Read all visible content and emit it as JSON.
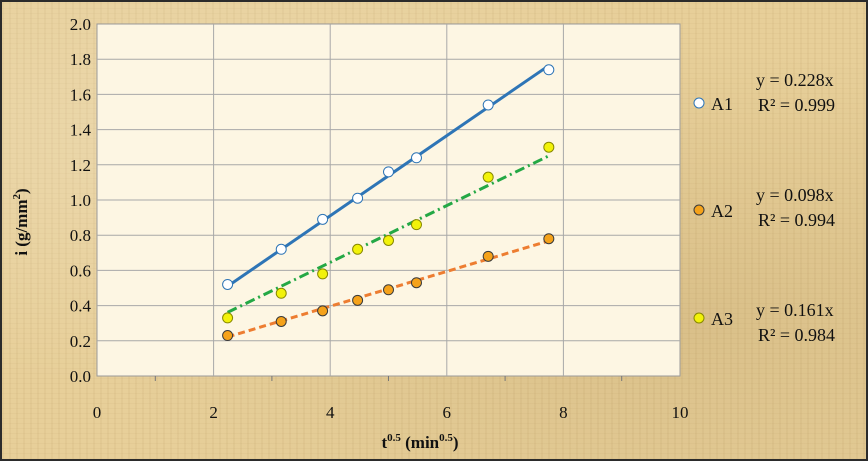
{
  "chart_data": {
    "type": "scatter",
    "xlabel": "t",
    "xlabel_sup": "0.5",
    "xlabel_unit": " (min",
    "xlabel_unit_sup": "0.5",
    "xlabel_close": ")",
    "ylabel": "i (g/mm",
    "ylabel_sup": "2",
    "ylabel_close": ")",
    "xlim": [
      0,
      10
    ],
    "ylim": [
      0,
      2
    ],
    "x_ticks": [
      "0",
      "2",
      "4",
      "6",
      "8",
      "10"
    ],
    "y_ticks": [
      "0.0",
      "0.2",
      "0.4",
      "0.6",
      "0.8",
      "1.0",
      "1.2",
      "1.4",
      "1.6",
      "1.8",
      "2.0"
    ],
    "grid": true,
    "legend_position": "right",
    "series": [
      {
        "name": "A1",
        "color": "#2e75b6",
        "marker_fill": "#ffffff",
        "marker_stroke": "#2e75b6",
        "line_style": "solid",
        "points": [
          [
            2.24,
            0.52
          ],
          [
            3.16,
            0.72
          ],
          [
            3.87,
            0.89
          ],
          [
            4.47,
            1.01
          ],
          [
            5.0,
            1.16
          ],
          [
            5.48,
            1.24
          ],
          [
            6.71,
            1.54
          ],
          [
            7.75,
            1.74
          ]
        ],
        "trendline_x": [
          2.24,
          7.75
        ],
        "equation": "y = 0.228x",
        "r2": "R² = 0.999"
      },
      {
        "name": "A2",
        "color": "#ed7d31",
        "marker_fill": "#f5a21a",
        "marker_stroke": "#3a3a3a",
        "line_style": "dashed",
        "points": [
          [
            2.24,
            0.23
          ],
          [
            3.16,
            0.31
          ],
          [
            3.87,
            0.37
          ],
          [
            4.47,
            0.43
          ],
          [
            5.0,
            0.49
          ],
          [
            5.48,
            0.53
          ],
          [
            6.71,
            0.68
          ],
          [
            7.75,
            0.78
          ]
        ],
        "trendline_x": [
          2.24,
          7.75
        ],
        "equation": "y = 0.098x",
        "r2": "R² = 0.994"
      },
      {
        "name": "A3",
        "color": "#24a845",
        "marker_fill": "#f2f20a",
        "marker_stroke": "#888800",
        "line_style": "dashdot",
        "points": [
          [
            2.24,
            0.33
          ],
          [
            3.16,
            0.47
          ],
          [
            3.87,
            0.58
          ],
          [
            4.47,
            0.72
          ],
          [
            5.0,
            0.77
          ],
          [
            5.48,
            0.86
          ],
          [
            6.71,
            1.13
          ],
          [
            7.75,
            1.3
          ]
        ],
        "trendline_x": [
          2.24,
          7.75
        ],
        "equation": "y = 0.161x",
        "r2": "R² = 0.984"
      }
    ]
  }
}
